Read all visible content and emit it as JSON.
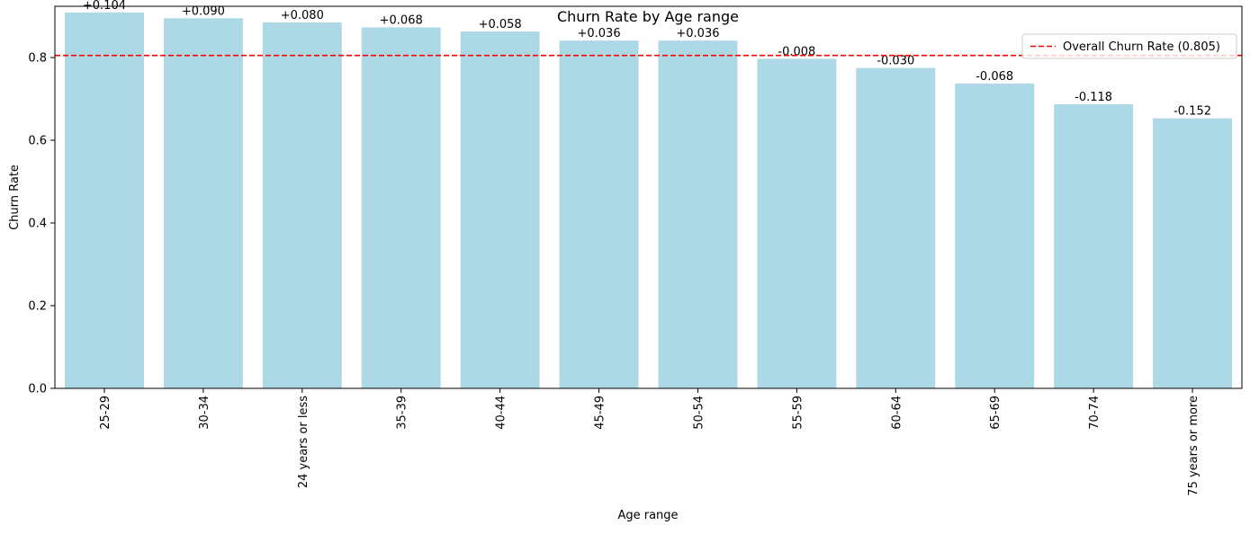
{
  "chart_data": {
    "type": "bar",
    "title": "Churn Rate by Age range",
    "xlabel": "Age range",
    "ylabel": "Churn Rate",
    "ylim": [
      0,
      0.924
    ],
    "yticks": [
      "0.0",
      "0.2",
      "0.4",
      "0.6",
      "0.8"
    ],
    "categories": [
      "25-29",
      "30-34",
      "24 years or less",
      "35-39",
      "40-44",
      "45-49",
      "50-54",
      "55-59",
      "60-64",
      "65-69",
      "70-74",
      "75 years or more"
    ],
    "values": [
      0.909,
      0.895,
      0.885,
      0.873,
      0.863,
      0.841,
      0.841,
      0.797,
      0.775,
      0.737,
      0.687,
      0.653
    ],
    "labels": [
      "+0.104",
      "+0.090",
      "+0.080",
      "+0.068",
      "+0.058",
      "+0.036",
      "+0.036",
      "-0.008",
      "-0.030",
      "-0.068",
      "-0.118",
      "-0.152"
    ],
    "reference_line": {
      "value": 0.805,
      "label": "Overall Churn Rate (0.805)"
    },
    "legend_position": "top-right",
    "grid": false,
    "colors": {
      "bar": "#add8e6",
      "reference_line": "#ff0000"
    }
  }
}
